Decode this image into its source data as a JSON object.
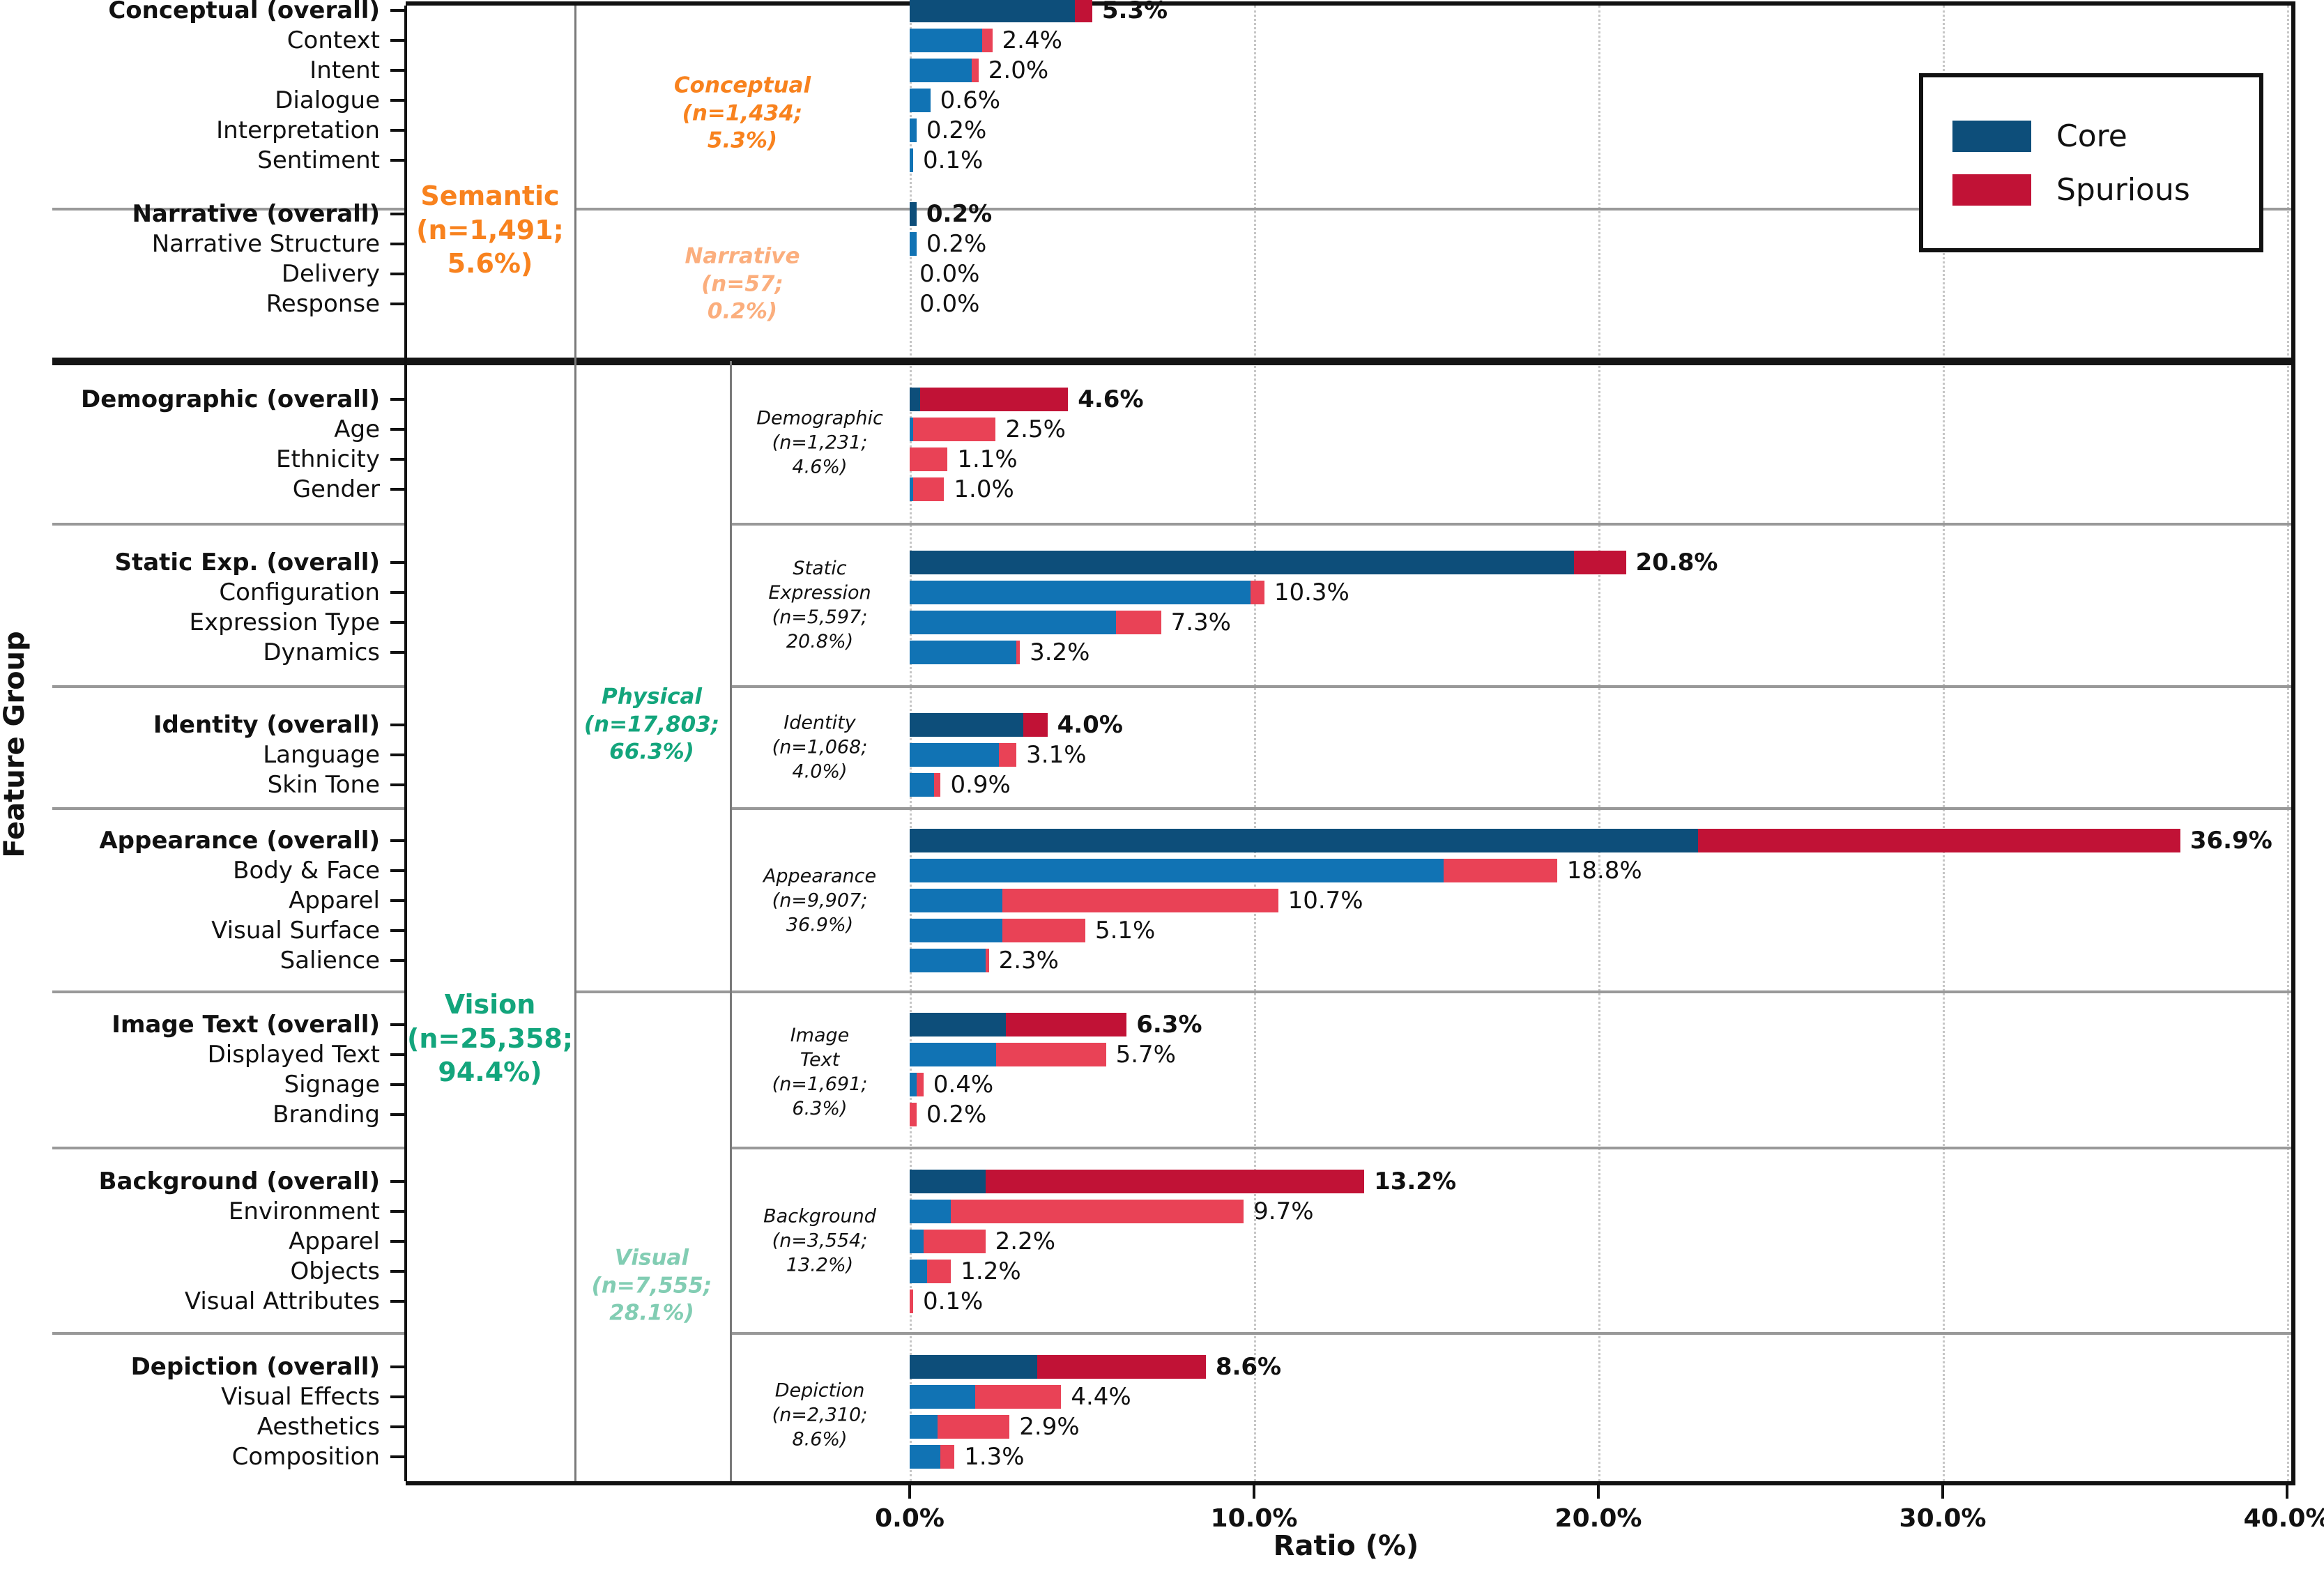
{
  "figure": {
    "xlabel": "Ratio (%)",
    "ylabel": "Feature Group",
    "x_ticks": [
      "0.0%",
      "10.0%",
      "20.0%",
      "30.0%",
      "40.0%"
    ],
    "legend": {
      "items": [
        {
          "label": "Core",
          "color": "#0d4e7a"
        },
        {
          "label": "Spurious",
          "color": "#c11236"
        }
      ]
    }
  },
  "colors": {
    "core_dark": "#0d4e7a",
    "core_light": "#1173b4",
    "spurious_dark": "#c11236",
    "spurious_light": "#e94256",
    "semantic_orange": "#f8821e",
    "narrative_light_orange": "#fbae7d",
    "vision_green": "#13a57c",
    "visual_light_green": "#82cdb3"
  },
  "chart_data": {
    "type": "bar",
    "orientation": "horizontal",
    "stacked": true,
    "title": "",
    "xlabel": "Ratio (%)",
    "ylabel": "Feature Group",
    "xlim": [
      0,
      40
    ],
    "x_tick_labels": [
      "0.0%",
      "10.0%",
      "20.0%",
      "30.0%",
      "40.0%"
    ],
    "legend": [
      "Core",
      "Spurious"
    ],
    "legend_position": "upper right",
    "grid": "vertical-dotted",
    "span_labels": [
      {
        "id": "semantic",
        "text": "Semantic\n(n=1,491;\n5.6%)",
        "color": "#f8821e",
        "italic": false
      },
      {
        "id": "conceptual",
        "text": "Conceptual\n(n=1,434;\n5.3%)",
        "color": "#f8821e",
        "italic": true
      },
      {
        "id": "narrative",
        "text": "Narrative\n(n=57;\n0.2%)",
        "color": "#fbae7d",
        "italic": true
      },
      {
        "id": "vision",
        "text": "Vision\n(n=25,358;\n94.4%)",
        "color": "#13a57c",
        "italic": false
      },
      {
        "id": "physical",
        "text": "Physical\n(n=17,803;\n66.3%)",
        "color": "#13a57c",
        "italic": true
      },
      {
        "id": "visual",
        "text": "Visual\n(n=7,555;\n28.1%)",
        "color": "#82cdb3",
        "italic": true
      }
    ],
    "sections": [
      {
        "side_label": null,
        "rows": [
          {
            "label": "Conceptual (overall)",
            "overall": true,
            "core": 4.8,
            "spurious": 0.5,
            "value_label": "5.3%"
          },
          {
            "label": "Context",
            "overall": false,
            "core": 2.1,
            "spurious": 0.3,
            "value_label": "2.4%"
          },
          {
            "label": "Intent",
            "overall": false,
            "core": 1.8,
            "spurious": 0.2,
            "value_label": "2.0%"
          },
          {
            "label": "Dialogue",
            "overall": false,
            "core": 0.6,
            "spurious": 0.0,
            "value_label": "0.6%"
          },
          {
            "label": "Interpretation",
            "overall": false,
            "core": 0.2,
            "spurious": 0.0,
            "value_label": "0.2%"
          },
          {
            "label": "Sentiment",
            "overall": false,
            "core": 0.1,
            "spurious": 0.0,
            "value_label": "0.1%"
          }
        ]
      },
      {
        "side_label": null,
        "rows": [
          {
            "label": "Narrative (overall)",
            "overall": true,
            "core": 0.2,
            "spurious": 0.0,
            "value_label": "0.2%"
          },
          {
            "label": "Narrative Structure",
            "overall": false,
            "core": 0.2,
            "spurious": 0.0,
            "value_label": "0.2%"
          },
          {
            "label": "Delivery",
            "overall": false,
            "core": 0.0,
            "spurious": 0.0,
            "value_label": "0.0%"
          },
          {
            "label": "Response",
            "overall": false,
            "core": 0.0,
            "spurious": 0.0,
            "value_label": "0.0%"
          }
        ]
      },
      {
        "side_label": "Demographic\n(n=1,231;\n4.6%)",
        "rows": [
          {
            "label": "Demographic (overall)",
            "overall": true,
            "core": 0.3,
            "spurious": 4.3,
            "value_label": "4.6%"
          },
          {
            "label": "Age",
            "overall": false,
            "core": 0.1,
            "spurious": 2.4,
            "value_label": "2.5%"
          },
          {
            "label": "Ethnicity",
            "overall": false,
            "core": 0.0,
            "spurious": 1.1,
            "value_label": "1.1%"
          },
          {
            "label": "Gender",
            "overall": false,
            "core": 0.1,
            "spurious": 0.9,
            "value_label": "1.0%"
          }
        ]
      },
      {
        "side_label": "Static\nExpression\n(n=5,597;\n20.8%)",
        "rows": [
          {
            "label": "Static Exp. (overall)",
            "overall": true,
            "core": 19.3,
            "spurious": 1.5,
            "value_label": "20.8%"
          },
          {
            "label": "Configuration",
            "overall": false,
            "core": 9.9,
            "spurious": 0.4,
            "value_label": "10.3%"
          },
          {
            "label": "Expression Type",
            "overall": false,
            "core": 6.0,
            "spurious": 1.3,
            "value_label": "7.3%"
          },
          {
            "label": "Dynamics",
            "overall": false,
            "core": 3.1,
            "spurious": 0.1,
            "value_label": "3.2%"
          }
        ]
      },
      {
        "side_label": "Identity\n(n=1,068;\n4.0%)",
        "rows": [
          {
            "label": "Identity (overall)",
            "overall": true,
            "core": 3.3,
            "spurious": 0.7,
            "value_label": "4.0%"
          },
          {
            "label": "Language",
            "overall": false,
            "core": 2.6,
            "spurious": 0.5,
            "value_label": "3.1%"
          },
          {
            "label": "Skin Tone",
            "overall": false,
            "core": 0.7,
            "spurious": 0.2,
            "value_label": "0.9%"
          }
        ]
      },
      {
        "side_label": "Appearance\n(n=9,907;\n36.9%)",
        "rows": [
          {
            "label": "Appearance (overall)",
            "overall": true,
            "core": 22.9,
            "spurious": 14.0,
            "value_label": "36.9%"
          },
          {
            "label": "Body & Face",
            "overall": false,
            "core": 15.5,
            "spurious": 3.3,
            "value_label": "18.8%"
          },
          {
            "label": "Apparel",
            "overall": false,
            "core": 2.7,
            "spurious": 8.0,
            "value_label": "10.7%"
          },
          {
            "label": "Visual Surface",
            "overall": false,
            "core": 2.7,
            "spurious": 2.4,
            "value_label": "5.1%"
          },
          {
            "label": "Salience",
            "overall": false,
            "core": 2.2,
            "spurious": 0.1,
            "value_label": "2.3%"
          }
        ]
      },
      {
        "side_label": "Image\nText\n(n=1,691;\n6.3%)",
        "rows": [
          {
            "label": "Image Text (overall)",
            "overall": true,
            "core": 2.8,
            "spurious": 3.5,
            "value_label": "6.3%"
          },
          {
            "label": "Displayed Text",
            "overall": false,
            "core": 2.5,
            "spurious": 3.2,
            "value_label": "5.7%"
          },
          {
            "label": "Signage",
            "overall": false,
            "core": 0.2,
            "spurious": 0.2,
            "value_label": "0.4%"
          },
          {
            "label": "Branding",
            "overall": false,
            "core": 0.0,
            "spurious": 0.2,
            "value_label": "0.2%"
          }
        ]
      },
      {
        "side_label": "Background\n(n=3,554;\n13.2%)",
        "rows": [
          {
            "label": "Background (overall)",
            "overall": true,
            "core": 2.2,
            "spurious": 11.0,
            "value_label": "13.2%"
          },
          {
            "label": "Environment",
            "overall": false,
            "core": 1.2,
            "spurious": 8.5,
            "value_label": "9.7%"
          },
          {
            "label": "Apparel",
            "overall": false,
            "core": 0.4,
            "spurious": 1.8,
            "value_label": "2.2%"
          },
          {
            "label": "Objects",
            "overall": false,
            "core": 0.5,
            "spurious": 0.7,
            "value_label": "1.2%"
          },
          {
            "label": "Visual Attributes",
            "overall": false,
            "core": 0.0,
            "spurious": 0.1,
            "value_label": "0.1%"
          }
        ]
      },
      {
        "side_label": "Depiction\n(n=2,310;\n8.6%)",
        "rows": [
          {
            "label": "Depiction (overall)",
            "overall": true,
            "core": 3.7,
            "spurious": 4.9,
            "value_label": "8.6%"
          },
          {
            "label": "Visual Effects",
            "overall": false,
            "core": 1.9,
            "spurious": 2.5,
            "value_label": "4.4%"
          },
          {
            "label": "Aesthetics",
            "overall": false,
            "core": 0.8,
            "spurious": 2.1,
            "value_label": "2.9%"
          },
          {
            "label": "Composition",
            "overall": false,
            "core": 0.9,
            "spurious": 0.4,
            "value_label": "1.3%"
          }
        ]
      }
    ]
  }
}
